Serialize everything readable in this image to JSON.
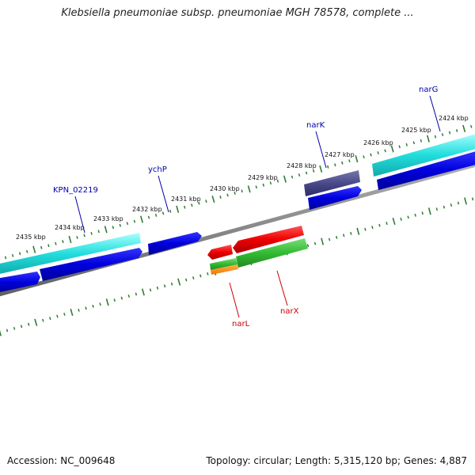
{
  "title": "Klebsiella pneumoniae subsp. pneumoniae MGH 78578, complete ...",
  "footer": {
    "accession": "Accession: NC_009648",
    "info": "Topology: circular; Length: 5,315,120 bp; Genes: 4,887"
  },
  "map": {
    "scale_labels": [
      "2424 kbp",
      "2425 kbp",
      "2426 kbp",
      "2427 kbp",
      "2428 kbp",
      "2429 kbp",
      "2430 kbp",
      "2431 kbp",
      "2432 kbp",
      "2433 kbp",
      "2434 kbp",
      "2435 kbp"
    ],
    "gene_labels": [
      "narG",
      "narK",
      "ychP",
      "KPN_02219",
      "narL",
      "narX"
    ],
    "colors": {
      "backbone": "#808080",
      "tick": "#2e7d32",
      "cds_forward": "#0000dd",
      "cds_reverse": "#0000dd",
      "light_blue": "#22dddd",
      "dark_purple": "#4a4a8a",
      "red": "#ee0000",
      "green": "#33bb33",
      "orange": "#ff8c00",
      "label_blue": "#0000aa",
      "label_red": "#cc0000"
    }
  }
}
